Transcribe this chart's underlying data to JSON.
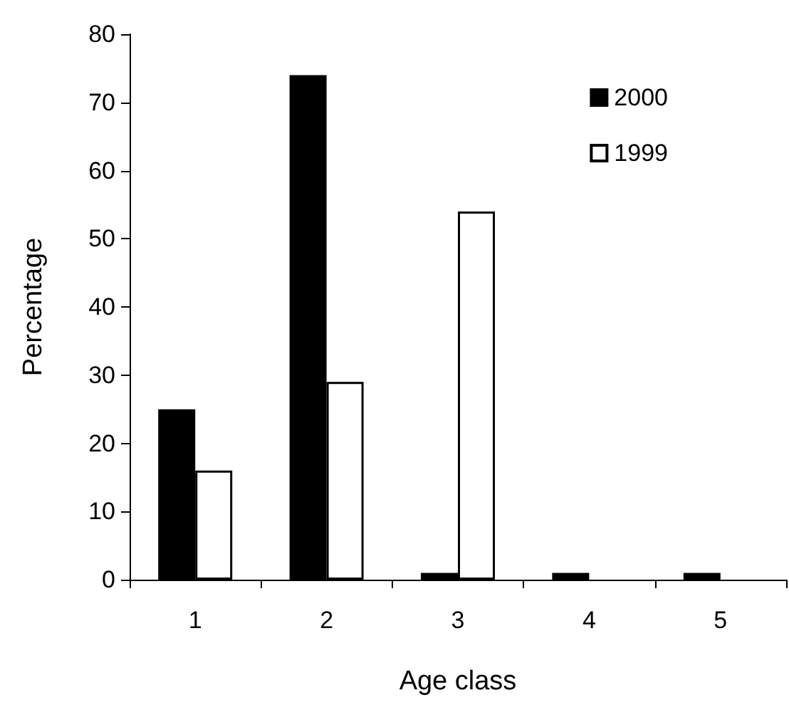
{
  "chart_data": {
    "type": "bar",
    "xlabel": "Age class",
    "ylabel": "Percentage",
    "categories": [
      "1",
      "2",
      "3",
      "4",
      "5"
    ],
    "series": [
      {
        "name": "2000",
        "color": "#000000",
        "values": [
          25,
          74,
          1,
          1,
          1
        ]
      },
      {
        "name": "1999",
        "color": "#ffffff",
        "values": [
          16,
          29,
          54,
          0,
          0
        ]
      }
    ],
    "ylim": [
      0,
      80
    ],
    "yticks": [
      0,
      10,
      20,
      30,
      40,
      50,
      60,
      70,
      80
    ],
    "grid": false,
    "legend": "top right"
  }
}
